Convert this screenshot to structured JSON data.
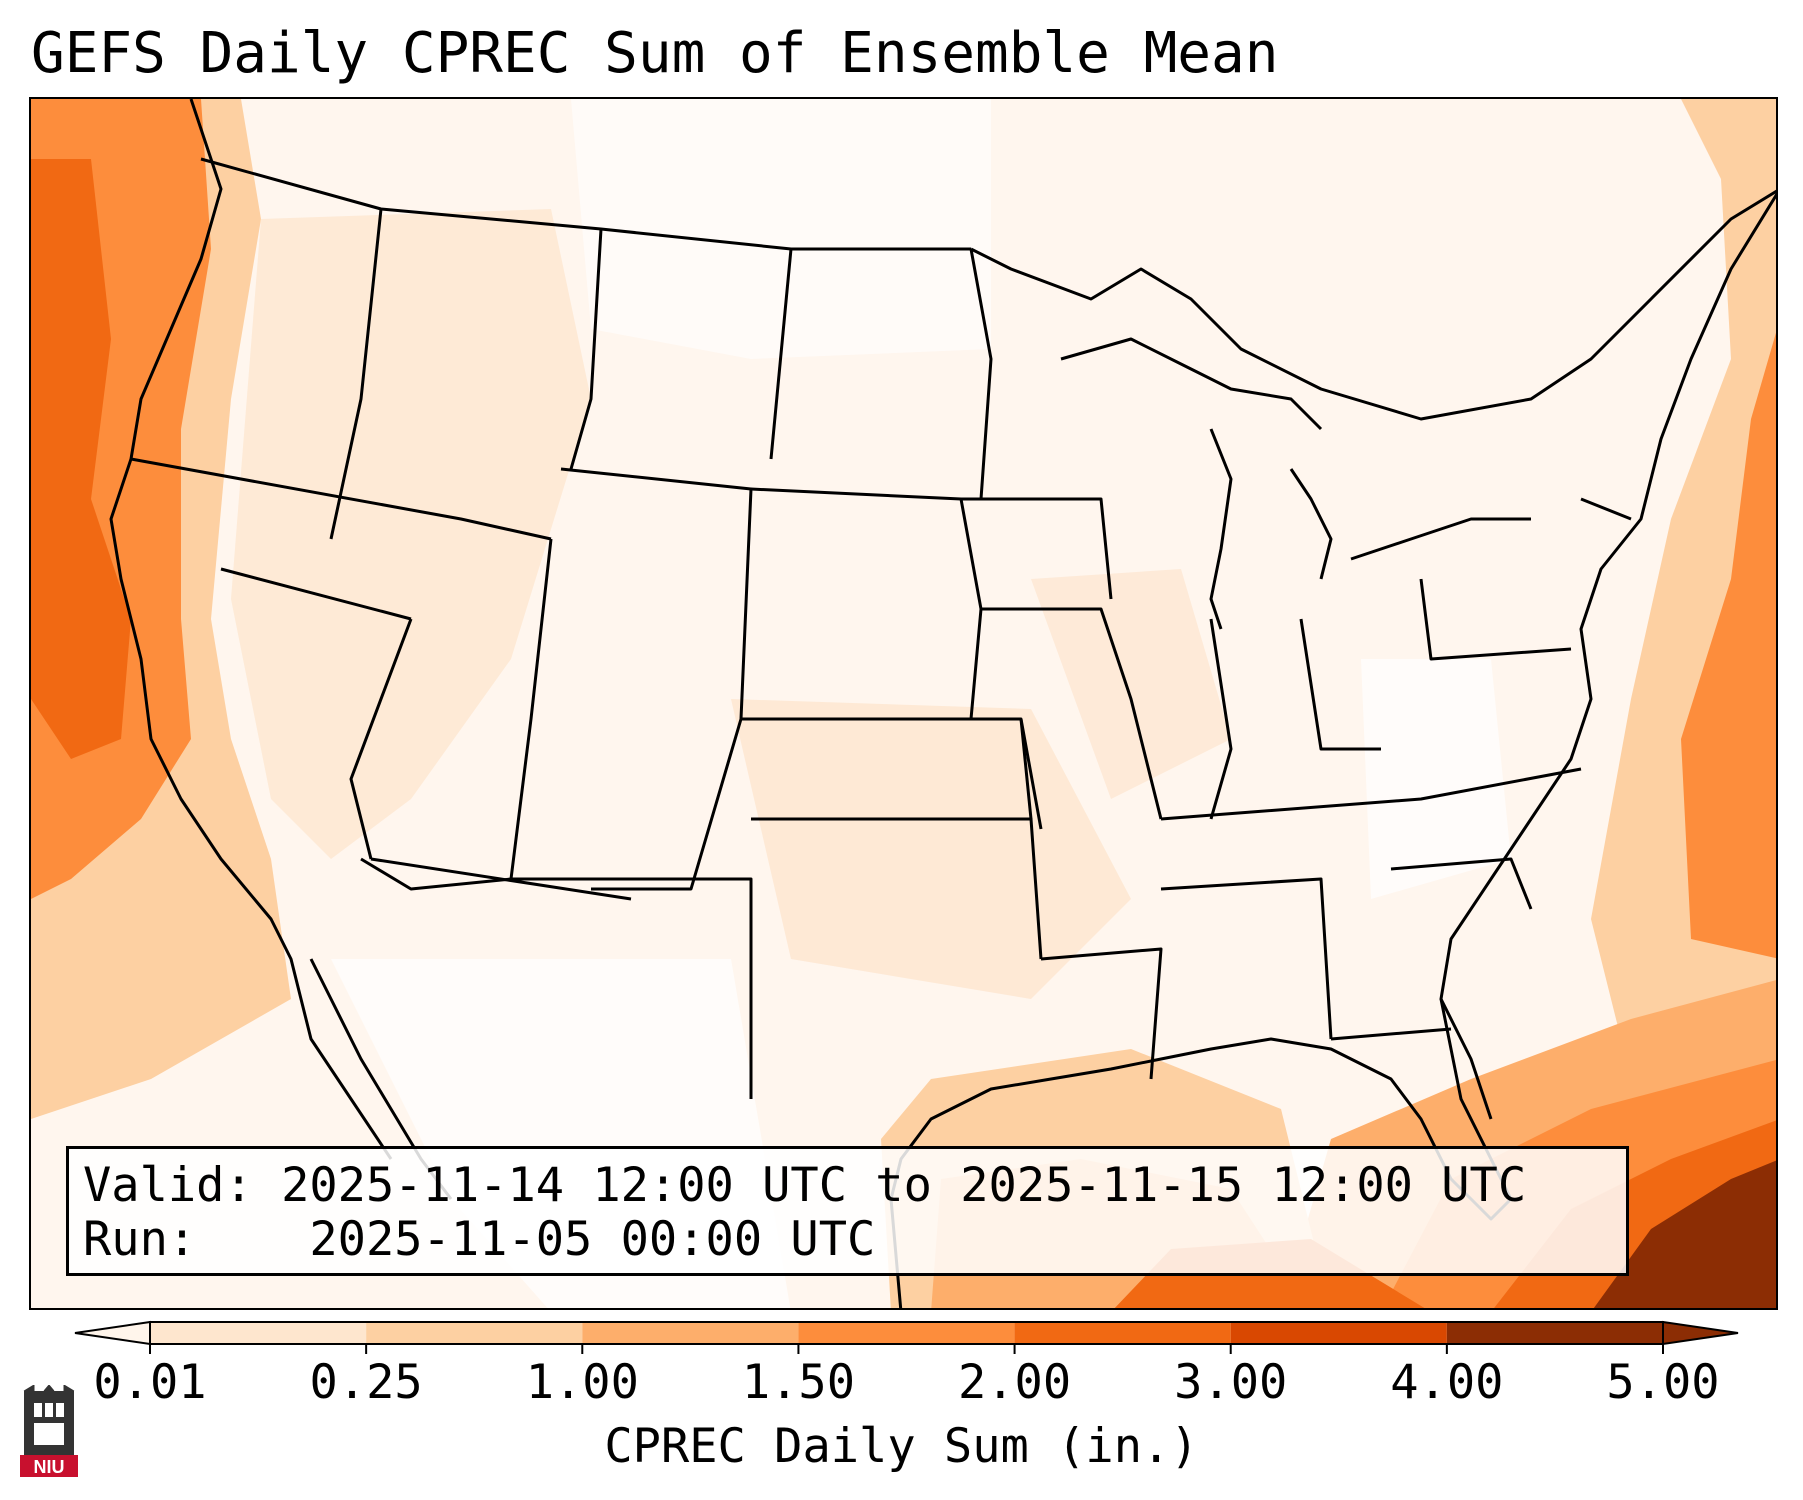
{
  "title": "GEFS Daily CPREC Sum of Ensemble Mean",
  "info": {
    "valid_label": "Valid:",
    "valid_value": "2025-11-14 12:00 UTC to 2025-11-15 12:00 UTC",
    "run_label": "Run:",
    "run_value": "2025-11-05 00:00 UTC"
  },
  "colorbar": {
    "label": "CPREC Daily Sum (in.)",
    "ticks": [
      "0.01",
      "0.25",
      "1.00",
      "1.50",
      "2.00",
      "3.00",
      "4.00",
      "5.00"
    ],
    "colors": [
      "#fff5eb",
      "#fee6ce",
      "#fdd0a2",
      "#fdae6b",
      "#fd8d3c",
      "#f16913",
      "#d94801",
      "#8c2d04"
    ],
    "extend": "both"
  },
  "logo": {
    "text": "NIU",
    "icon": "university-tower-icon",
    "color": "#c8102e"
  },
  "map": {
    "region": "Contiguous United States",
    "colors": {
      "background": "#fff6ee",
      "light": "#fee6ce",
      "medium": "#fdd0a2",
      "orange": "#fdae6b",
      "dark_orange": "#fd8d3c",
      "deep": "#f16913",
      "darkest": "#8c2d04",
      "boundary": "#000000"
    }
  }
}
